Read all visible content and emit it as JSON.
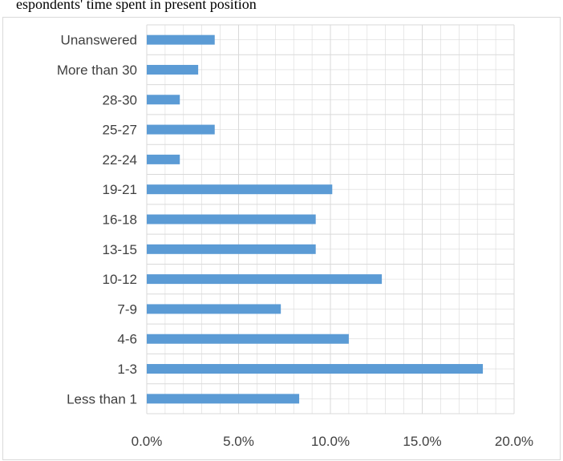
{
  "caption_fragment": "espondents' time spent in present position",
  "chart_data": {
    "type": "bar",
    "orientation": "horizontal",
    "categories": [
      "Unanswered",
      "More than 30",
      "28-30",
      "25-27",
      "22-24",
      "19-21",
      "16-18",
      "13-15",
      "10-12",
      "7-9",
      "4-6",
      "1-3",
      "Less than 1"
    ],
    "values": [
      3.7,
      2.8,
      1.8,
      3.7,
      1.8,
      10.1,
      9.2,
      9.2,
      12.8,
      7.3,
      11.0,
      18.3,
      8.3
    ],
    "value_unit": "percent",
    "xlim": [
      0,
      20
    ],
    "xticks": [
      "0.0%",
      "5.0%",
      "10.0%",
      "15.0%",
      "20.0%"
    ],
    "minor_gridlines_per_major": 5,
    "grid": true,
    "bar_color": "#5b9bd5",
    "gridline_color": "#d9d9d9",
    "title": "",
    "xlabel": "",
    "ylabel": ""
  }
}
